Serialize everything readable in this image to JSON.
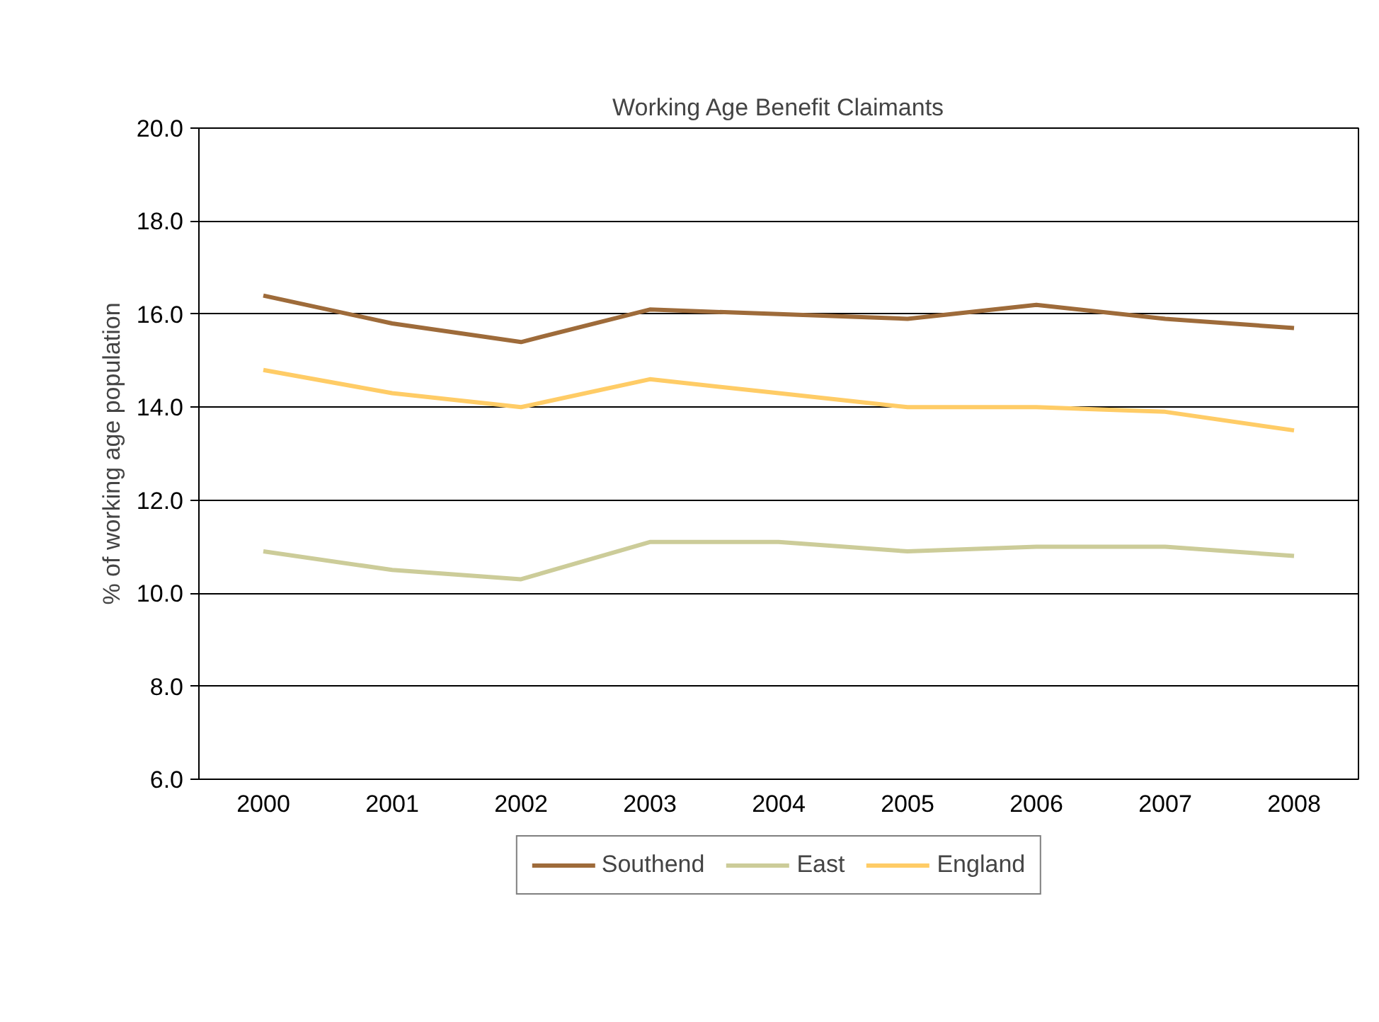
{
  "chart_data": {
    "type": "line",
    "title": "Working Age Benefit Claimants",
    "ylabel": "% of working age population",
    "categories": [
      "2000",
      "2001",
      "2002",
      "2003",
      "2004",
      "2005",
      "2006",
      "2007",
      "2008"
    ],
    "series": [
      {
        "name": "Southend",
        "color": "#9e6b3a",
        "values": [
          16.4,
          15.8,
          15.4,
          16.1,
          16.0,
          15.9,
          16.2,
          15.9,
          15.7
        ]
      },
      {
        "name": "East",
        "color": "#cccc99",
        "values": [
          10.9,
          10.5,
          10.3,
          11.1,
          11.1,
          10.9,
          11.0,
          11.0,
          10.8
        ]
      },
      {
        "name": "England",
        "color": "#ffcc66",
        "values": [
          14.8,
          14.3,
          14.0,
          14.6,
          14.3,
          14.0,
          14.0,
          13.9,
          13.5
        ]
      }
    ],
    "ylim": [
      6,
      20
    ],
    "yticks": [
      {
        "value": 6,
        "label": "6.0"
      },
      {
        "value": 8,
        "label": "8.0"
      },
      {
        "value": 10,
        "label": "10.0"
      },
      {
        "value": 12,
        "label": "12.0"
      },
      {
        "value": 14,
        "label": "14.0"
      },
      {
        "value": 16,
        "label": "16.0"
      },
      {
        "value": 18,
        "label": "18.0"
      },
      {
        "value": 20,
        "label": "20.0"
      }
    ],
    "grid": "y",
    "legend": "bottom",
    "marker": "none",
    "line_style": "solid"
  }
}
